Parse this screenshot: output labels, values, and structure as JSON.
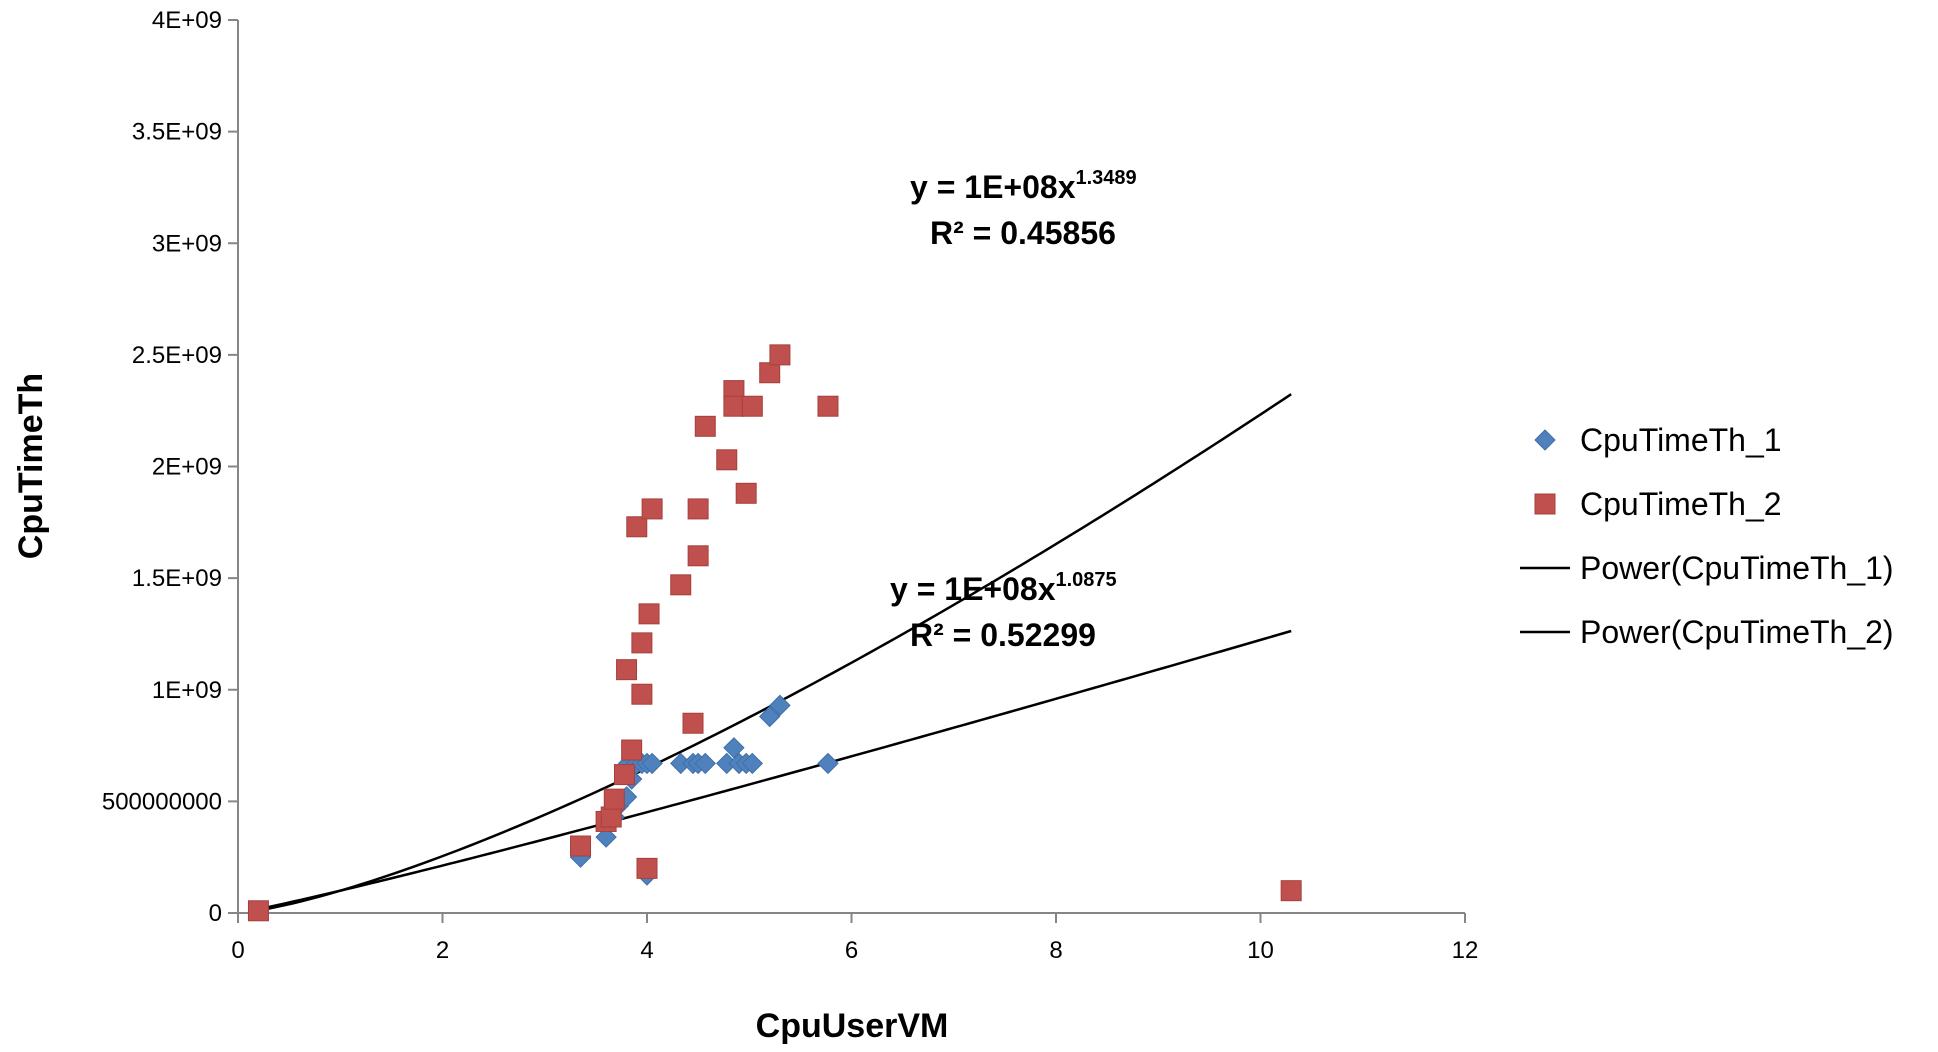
{
  "chart_data": {
    "type": "scatter",
    "xlabel": "CpuUserVM",
    "ylabel": "CpuTimeTh",
    "xlim": [
      0,
      12
    ],
    "ylim": [
      0,
      4000000000
    ],
    "x_ticks": [
      0,
      2,
      4,
      6,
      8,
      10,
      12
    ],
    "x_tick_labels": [
      "0",
      "2",
      "4",
      "6",
      "8",
      "10",
      "12"
    ],
    "y_ticks": [
      0,
      500000000,
      1000000000,
      1500000000,
      2000000000,
      2500000000,
      3000000000,
      3500000000,
      4000000000
    ],
    "y_tick_labels": [
      "0",
      "500000000",
      "1E+09",
      "1.5E+09",
      "2E+09",
      "2.5E+09",
      "3E+09",
      "3.5E+09",
      "4E+09"
    ],
    "grid": false,
    "legend_position": "right",
    "legend": [
      "CpuTimeTh_1",
      "CpuTimeTh_2",
      "Power(CpuTimeTh_1)",
      "Power(CpuTimeTh_2)"
    ],
    "series": [
      {
        "name": "CpuTimeTh_1",
        "marker": "diamond",
        "color": "#4f81bd",
        "points": [
          [
            0.2,
            10000000
          ],
          [
            3.35,
            250000000
          ],
          [
            3.6,
            340000000
          ],
          [
            3.68,
            430000000
          ],
          [
            3.72,
            480000000
          ],
          [
            3.8,
            520000000
          ],
          [
            3.85,
            600000000
          ],
          [
            3.78,
            640000000
          ],
          [
            3.82,
            670000000
          ],
          [
            3.9,
            670000000
          ],
          [
            3.95,
            670000000
          ],
          [
            4.0,
            670000000
          ],
          [
            4.05,
            670000000
          ],
          [
            4.33,
            670000000
          ],
          [
            4.45,
            670000000
          ],
          [
            4.5,
            670000000
          ],
          [
            4.57,
            670000000
          ],
          [
            4.78,
            670000000
          ],
          [
            4.85,
            740000000
          ],
          [
            4.9,
            670000000
          ],
          [
            4.97,
            670000000
          ],
          [
            5.03,
            670000000
          ],
          [
            5.2,
            880000000
          ],
          [
            5.3,
            930000000
          ],
          [
            5.77,
            670000000
          ],
          [
            4.0,
            170000000
          ],
          [
            10.3,
            100000000
          ]
        ]
      },
      {
        "name": "CpuTimeTh_2",
        "marker": "square",
        "color": "#c0504d",
        "points": [
          [
            0.2,
            10000000
          ],
          [
            3.35,
            300000000
          ],
          [
            3.6,
            410000000
          ],
          [
            3.65,
            430000000
          ],
          [
            3.68,
            510000000
          ],
          [
            3.78,
            620000000
          ],
          [
            3.85,
            730000000
          ],
          [
            3.95,
            980000000
          ],
          [
            3.8,
            1090000000
          ],
          [
            3.95,
            1210000000
          ],
          [
            4.02,
            1340000000
          ],
          [
            3.9,
            1730000000
          ],
          [
            4.05,
            1810000000
          ],
          [
            4.0,
            200000000
          ],
          [
            4.33,
            1470000000
          ],
          [
            4.45,
            850000000
          ],
          [
            4.5,
            1600000000
          ],
          [
            4.5,
            1810000000
          ],
          [
            4.57,
            2180000000
          ],
          [
            4.78,
            2030000000
          ],
          [
            4.85,
            2340000000
          ],
          [
            4.85,
            2270000000
          ],
          [
            4.97,
            1880000000
          ],
          [
            5.03,
            2270000000
          ],
          [
            5.2,
            2420000000
          ],
          [
            5.3,
            2500000000
          ],
          [
            5.77,
            2270000000
          ],
          [
            10.3,
            100000000
          ]
        ]
      }
    ],
    "trendlines": [
      {
        "name": "Power(CpuTimeTh_1)",
        "type": "power",
        "coefficient": 100000000,
        "exponent": 1.0875,
        "r2": 0.52299,
        "x_range": [
          0.2,
          10.3
        ],
        "color": "#000000"
      },
      {
        "name": "Power(CpuTimeTh_2)",
        "type": "power",
        "coefficient": 100000000,
        "exponent": 1.3489,
        "r2": 0.45856,
        "x_range": [
          0.2,
          10.3
        ],
        "color": "#000000"
      }
    ],
    "annotations": [
      {
        "id": "eq2",
        "equation_base": "y = 1E+08x",
        "equation_exponent": "1.3489",
        "r2_text": "R² = 0.45856"
      },
      {
        "id": "eq1",
        "equation_base": "y = 1E+08x",
        "equation_exponent": "1.0875",
        "r2_text": "R² = 0.52299"
      }
    ]
  }
}
